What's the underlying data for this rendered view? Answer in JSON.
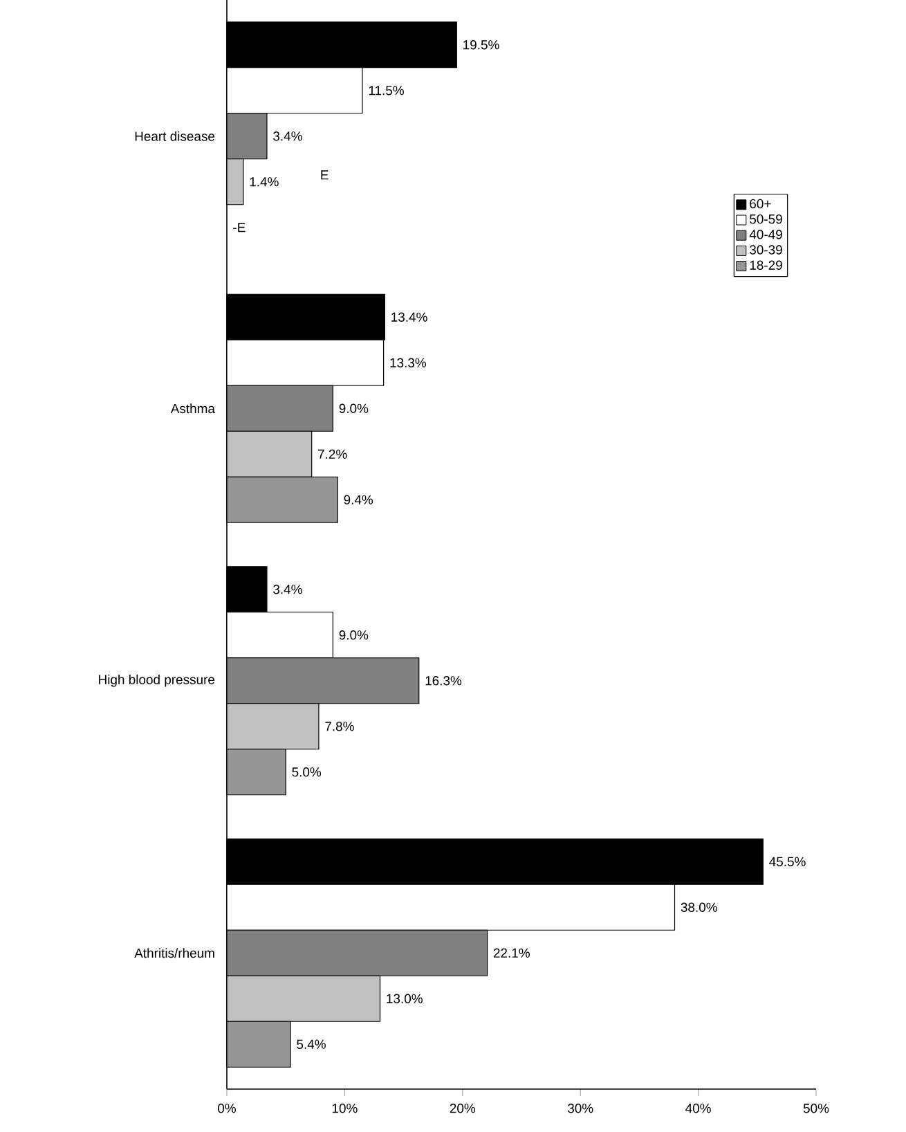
{
  "chart_data": {
    "type": "bar",
    "orientation": "horizontal",
    "categories": [
      "Heart disease",
      "Asthma",
      "High blood pressure",
      "Athritis/rheum"
    ],
    "series": [
      {
        "name": "60+",
        "color": "#000000",
        "values": [
          19.5,
          13.4,
          3.4,
          45.5
        ],
        "value_labels": [
          "19.5%",
          "13.4%",
          "3.4%",
          "45.5%"
        ]
      },
      {
        "name": "50-59",
        "color": "#ffffff",
        "values": [
          11.5,
          13.3,
          9.0,
          38.0
        ],
        "value_labels": [
          "11.5%",
          "13.3%",
          "9.0%",
          "38.0%"
        ]
      },
      {
        "name": "40-49",
        "color": "#808080",
        "values": [
          3.4,
          9.0,
          16.3,
          22.1
        ],
        "value_labels": [
          "3.4%",
          "9.0%",
          "16.3%",
          "22.1%"
        ]
      },
      {
        "name": "30-39",
        "color": "#c0c0c0",
        "values": [
          1.4,
          7.2,
          7.8,
          13.0
        ],
        "value_labels": [
          "1.4%",
          "7.2%",
          "7.8%",
          "13.0%"
        ]
      },
      {
        "name": "18-29",
        "color": "#969696",
        "values": [
          null,
          9.4,
          5.0,
          5.4
        ],
        "value_labels": [
          "-E",
          "9.4%",
          "5.0%",
          "5.4%"
        ]
      }
    ],
    "xlim": [
      0,
      50
    ],
    "xticks": [
      {
        "value": 0,
        "label": "0%"
      },
      {
        "value": 10,
        "label": "10%"
      },
      {
        "value": 20,
        "label": "20%"
      },
      {
        "value": 30,
        "label": "30%"
      },
      {
        "value": 40,
        "label": "40%"
      },
      {
        "value": 50,
        "label": "50%"
      }
    ],
    "annotations": [
      "E"
    ],
    "legend": "top right",
    "grid": false
  }
}
